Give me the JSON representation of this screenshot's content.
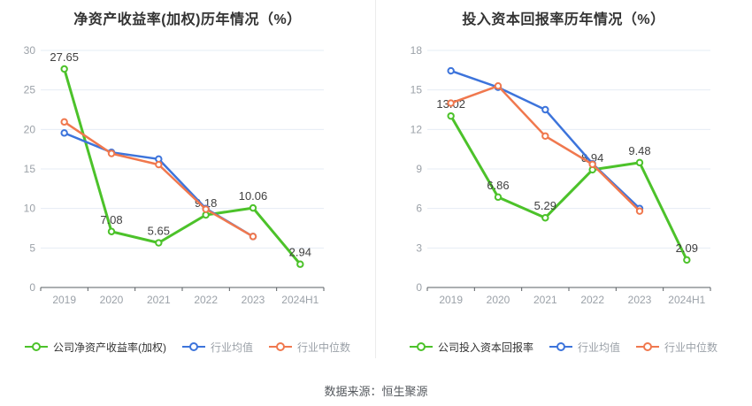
{
  "page": {
    "footer": "数据来源：恒生聚源",
    "colors": {
      "company": "#4cc22a",
      "industry_mean": "#3d74db",
      "industry_median": "#f0784e",
      "grid": "#e6ecf4",
      "axis_line": "#5a5f63",
      "tick_label": "#9ba1a8",
      "data_label": "#404040",
      "title": "#333333",
      "legend_company_text": "#333333",
      "legend_muted_text": "#9ba1a8"
    }
  },
  "chart_data": [
    {
      "type": "line",
      "title": "净资产收益率(加权)历年情况（%）",
      "categories": [
        "2019",
        "2020",
        "2021",
        "2022",
        "2023",
        "2024H1"
      ],
      "ylim": [
        0,
        30
      ],
      "ytick_step": 5,
      "grid": true,
      "legend_position": "bottom",
      "series": [
        {
          "name": "公司净资产收益率(加权)",
          "color_key": "company",
          "values": [
            27.65,
            7.08,
            5.65,
            9.18,
            10.06,
            2.94
          ],
          "labels": [
            "27.65",
            "7.08",
            "5.65",
            "9.18",
            "10.06",
            "2.94"
          ]
        },
        {
          "name": "行业均值",
          "color_key": "industry_mean",
          "values": [
            19.55,
            17.1,
            16.25,
            10.0,
            6.45,
            null
          ],
          "labels": null
        },
        {
          "name": "行业中位数",
          "color_key": "industry_median",
          "values": [
            20.95,
            16.95,
            15.55,
            9.9,
            6.45,
            null
          ],
          "labels": null
        }
      ]
    },
    {
      "type": "line",
      "title": "投入资本回报率历年情况（%）",
      "categories": [
        "2019",
        "2020",
        "2021",
        "2022",
        "2023",
        "2024H1"
      ],
      "ylim": [
        0,
        18
      ],
      "ytick_step": 3,
      "grid": true,
      "legend_position": "bottom",
      "series": [
        {
          "name": "公司投入资本回报率",
          "color_key": "company",
          "values": [
            13.02,
            6.86,
            5.29,
            8.94,
            9.48,
            2.09
          ],
          "labels": [
            "13.02",
            "6.86",
            "5.29",
            "8.94",
            "9.48",
            "2.09"
          ]
        },
        {
          "name": "行业均值",
          "color_key": "industry_mean",
          "values": [
            16.45,
            15.2,
            13.5,
            9.4,
            6.0,
            null
          ],
          "labels": null
        },
        {
          "name": "行业中位数",
          "color_key": "industry_median",
          "values": [
            14.0,
            15.3,
            11.5,
            9.35,
            5.8,
            null
          ],
          "labels": null
        }
      ]
    }
  ]
}
